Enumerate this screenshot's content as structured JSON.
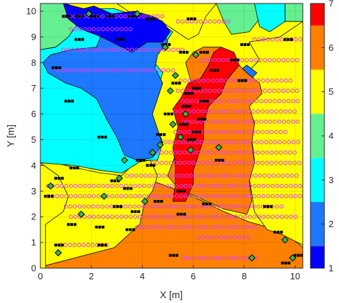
{
  "chart_data": {
    "type": "heatmap",
    "xlabel": "X [m]",
    "ylabel": "Y [m]",
    "xlim": [
      0,
      10.3
    ],
    "ylim": [
      0,
      10.3
    ],
    "x_ticks": [
      0,
      2,
      4,
      6,
      8,
      10
    ],
    "y_ticks": [
      0,
      1,
      2,
      3,
      4,
      5,
      6,
      7,
      8,
      9,
      10
    ],
    "colorbar": {
      "range": [
        1,
        7
      ],
      "ticks": [
        1,
        2,
        3,
        4,
        5,
        6,
        7
      ],
      "levels": [
        {
          "value": 1,
          "color": "#0000ff"
        },
        {
          "value": 2,
          "color": "#1e78ff"
        },
        {
          "value": 3,
          "color": "#00ffff"
        },
        {
          "value": 4,
          "color": "#64f090"
        },
        {
          "value": 5,
          "color": "#ffff00"
        },
        {
          "value": 6,
          "color": "#ff8000"
        },
        {
          "value": 7,
          "color": "#ff0000"
        }
      ]
    },
    "regions": [
      {
        "level": 6,
        "polygon": [
          [
            0.2,
            0
          ],
          [
            10.3,
            0
          ],
          [
            10.3,
            0.8
          ],
          [
            9.6,
            1.4
          ],
          [
            8.2,
            1.8
          ],
          [
            7.2,
            2.2
          ],
          [
            6.4,
            2.6
          ],
          [
            5.2,
            3.1
          ],
          [
            4.4,
            3.4
          ],
          [
            3.9,
            3.7
          ],
          [
            3.4,
            3.1
          ],
          [
            2.8,
            2.5
          ],
          [
            2.1,
            2.0
          ],
          [
            1.6,
            1.2
          ],
          [
            0.9,
            0.6
          ],
          [
            0.3,
            0.3
          ]
        ]
      },
      {
        "level": 5,
        "polygon": [
          [
            0,
            4.1
          ],
          [
            0.7,
            3.6
          ],
          [
            1.1,
            2.8
          ],
          [
            0.9,
            2.2
          ],
          [
            0.2,
            1.7
          ],
          [
            0.2,
            0.1
          ],
          [
            2.9,
            0.8
          ],
          [
            3.9,
            1.7
          ],
          [
            4.1,
            2.6
          ],
          [
            4.4,
            3.0
          ],
          [
            4.6,
            3.6
          ],
          [
            4.3,
            4.2
          ],
          [
            3.7,
            4.1
          ],
          [
            3.2,
            3.6
          ],
          [
            2.4,
            3.7
          ],
          [
            1.4,
            3.9
          ],
          [
            0.6,
            4.1
          ]
        ]
      },
      {
        "level": 5,
        "polygon": [
          [
            1.0,
            10.3
          ],
          [
            0.2,
            10.3
          ],
          [
            0.2,
            8.9
          ],
          [
            0.6,
            8.6
          ],
          [
            1.1,
            8.9
          ],
          [
            1.7,
            9.6
          ],
          [
            1.5,
            10.1
          ]
        ]
      },
      {
        "level": 5,
        "polygon": [
          [
            3.0,
            10.3
          ],
          [
            3.6,
            9.9
          ],
          [
            4.6,
            9.7
          ],
          [
            5.2,
            9.3
          ],
          [
            5.8,
            8.9
          ],
          [
            6.2,
            9.1
          ],
          [
            6.5,
            9.8
          ],
          [
            6.9,
            10.3
          ]
        ]
      },
      {
        "level": 5,
        "polygon": [
          [
            10.3,
            0.9
          ],
          [
            10.3,
            9.6
          ],
          [
            9.4,
            9.0
          ],
          [
            8.2,
            8.8
          ],
          [
            8.6,
            8.1
          ],
          [
            8.1,
            7.6
          ],
          [
            7.4,
            7.1
          ],
          [
            7.0,
            6.6
          ],
          [
            7.5,
            6.4
          ],
          [
            8.1,
            6.2
          ],
          [
            8.4,
            5.7
          ],
          [
            8.3,
            5.0
          ],
          [
            8.4,
            4.2
          ],
          [
            8.2,
            3.5
          ],
          [
            8.3,
            2.9
          ],
          [
            8.4,
            2.2
          ],
          [
            8.9,
            1.5
          ],
          [
            9.5,
            1.3
          ]
        ]
      },
      {
        "level": 4,
        "polygon": [
          [
            0,
            10.3
          ],
          [
            1.0,
            10.3
          ],
          [
            1.5,
            10.1
          ],
          [
            1.7,
            9.6
          ],
          [
            1.2,
            9.0
          ],
          [
            0.6,
            8.6
          ],
          [
            0,
            8.5
          ]
        ]
      },
      {
        "level": 4,
        "polygon": [
          [
            6.9,
            10.3
          ],
          [
            8.4,
            10.3
          ],
          [
            8.6,
            9.7
          ],
          [
            8.2,
            9.2
          ],
          [
            7.5,
            9.1
          ],
          [
            7.2,
            9.6
          ]
        ]
      },
      {
        "level": 4,
        "polygon": [
          [
            9.6,
            10.3
          ],
          [
            10.3,
            10.3
          ],
          [
            10.3,
            9.6
          ],
          [
            9.6,
            9.6
          ]
        ]
      },
      {
        "level": 3,
        "polygon": [
          [
            0,
            8.5
          ],
          [
            0.6,
            8.6
          ],
          [
            1.1,
            9.0
          ],
          [
            1.6,
            9.7
          ],
          [
            2.0,
            10.1
          ],
          [
            2.9,
            10.1
          ],
          [
            3.8,
            9.8
          ],
          [
            4.6,
            9.6
          ],
          [
            5.2,
            9.2
          ],
          [
            4.8,
            8.6
          ],
          [
            4.4,
            8.1
          ],
          [
            4.8,
            7.6
          ],
          [
            4.6,
            7.0
          ],
          [
            4.3,
            6.3
          ],
          [
            4.5,
            5.6
          ],
          [
            4.8,
            4.9
          ],
          [
            4.6,
            4.2
          ],
          [
            4.0,
            4.2
          ],
          [
            3.2,
            3.7
          ],
          [
            2.4,
            3.8
          ],
          [
            1.3,
            4.0
          ],
          [
            0,
            4.1
          ]
        ]
      },
      {
        "level": 3,
        "polygon": [
          [
            8.4,
            10.3
          ],
          [
            9.6,
            10.3
          ],
          [
            9.6,
            9.6
          ],
          [
            9.0,
            9.2
          ],
          [
            8.6,
            9.4
          ]
        ]
      },
      {
        "level": 2,
        "polygon": [
          [
            0.4,
            8.3
          ],
          [
            1.2,
            8.5
          ],
          [
            2.2,
            8.6
          ],
          [
            2.4,
            9.1
          ],
          [
            2.2,
            9.7
          ],
          [
            3.0,
            9.9
          ],
          [
            4.0,
            9.6
          ],
          [
            4.8,
            9.3
          ],
          [
            5.0,
            8.8
          ],
          [
            4.6,
            8.3
          ],
          [
            4.5,
            7.8
          ],
          [
            4.8,
            7.2
          ],
          [
            4.6,
            6.6
          ],
          [
            4.4,
            6.0
          ],
          [
            4.6,
            5.4
          ],
          [
            4.8,
            4.8
          ],
          [
            4.4,
            4.3
          ],
          [
            3.8,
            4.2
          ],
          [
            3.3,
            4.4
          ],
          [
            3.0,
            5.1
          ],
          [
            2.6,
            5.8
          ],
          [
            2.2,
            6.6
          ],
          [
            1.6,
            7.0
          ],
          [
            1.0,
            7.2
          ],
          [
            0.3,
            7.6
          ],
          [
            0.1,
            8.0
          ]
        ]
      },
      {
        "level": 2,
        "polygon": [
          [
            7.7,
            7.1
          ],
          [
            8.2,
            7.3
          ],
          [
            8.5,
            7.6
          ],
          [
            8.1,
            7.9
          ],
          [
            7.6,
            7.5
          ]
        ]
      },
      {
        "level": 1,
        "polygon": [
          [
            0.9,
            10.3
          ],
          [
            1.7,
            10.1
          ],
          [
            2.1,
            10.2
          ],
          [
            2.8,
            9.9
          ],
          [
            3.7,
            10.0
          ],
          [
            4.4,
            9.8
          ],
          [
            4.8,
            9.6
          ],
          [
            5.1,
            9.2
          ],
          [
            4.8,
            8.8
          ],
          [
            4.2,
            8.8
          ],
          [
            3.6,
            8.4
          ],
          [
            3.0,
            8.7
          ],
          [
            2.4,
            9.0
          ],
          [
            1.6,
            9.3
          ],
          [
            1.1,
            9.7
          ]
        ]
      },
      {
        "level": 6,
        "polygon": [
          [
            6.4,
            8.6
          ],
          [
            7.1,
            8.6
          ],
          [
            7.6,
            8.1
          ],
          [
            8.1,
            7.6
          ],
          [
            8.6,
            7.2
          ],
          [
            8.7,
            6.8
          ],
          [
            8.2,
            6.3
          ],
          [
            8.4,
            5.6
          ],
          [
            8.3,
            4.9
          ],
          [
            8.4,
            4.1
          ],
          [
            8.2,
            3.4
          ],
          [
            8.3,
            2.6
          ],
          [
            8.1,
            2.1
          ],
          [
            7.2,
            2.3
          ],
          [
            6.3,
            2.7
          ],
          [
            5.4,
            3.1
          ],
          [
            5.0,
            3.6
          ],
          [
            5.3,
            4.4
          ],
          [
            5.7,
            5.1
          ],
          [
            5.4,
            5.8
          ],
          [
            5.9,
            6.5
          ],
          [
            5.9,
            7.3
          ],
          [
            5.7,
            8.0
          ],
          [
            6.0,
            8.4
          ]
        ]
      },
      {
        "level": 7,
        "polygon": [
          [
            7.1,
            8.6
          ],
          [
            7.6,
            8.4
          ],
          [
            7.8,
            7.9
          ],
          [
            7.3,
            7.3
          ],
          [
            7.1,
            6.8
          ],
          [
            6.6,
            6.3
          ],
          [
            6.4,
            5.6
          ],
          [
            6.4,
            5.0
          ],
          [
            6.2,
            4.4
          ],
          [
            6.0,
            3.8
          ],
          [
            6.0,
            3.3
          ],
          [
            5.7,
            2.6
          ],
          [
            5.2,
            2.6
          ],
          [
            5.3,
            3.3
          ],
          [
            5.3,
            4.0
          ],
          [
            5.2,
            4.7
          ],
          [
            5.4,
            5.5
          ],
          [
            5.2,
            6.2
          ],
          [
            5.5,
            6.6
          ],
          [
            5.8,
            7.2
          ],
          [
            6.3,
            7.4
          ],
          [
            6.6,
            7.9
          ],
          [
            6.8,
            8.4
          ]
        ]
      }
    ],
    "black_markers": [
      [
        0.9,
        9.8
      ],
      [
        1.4,
        9.8
      ],
      [
        2.0,
        9.8
      ],
      [
        2.6,
        9.8
      ],
      [
        3.5,
        9.8
      ],
      [
        4.2,
        9.7
      ],
      [
        5.8,
        9.7
      ],
      [
        1.4,
        8.9
      ],
      [
        3.0,
        8.9
      ],
      [
        4.8,
        8.7
      ],
      [
        7.9,
        8.7
      ],
      [
        9.6,
        8.9
      ],
      [
        5.5,
        8.4
      ],
      [
        6.3,
        8.4
      ],
      [
        7.5,
        8.1
      ],
      [
        0.5,
        7.8
      ],
      [
        6.7,
        7.7
      ],
      [
        7.8,
        7.3
      ],
      [
        5.2,
        7.2
      ],
      [
        6.0,
        7.0
      ],
      [
        5.7,
        6.8
      ],
      [
        6.3,
        6.5
      ],
      [
        1.0,
        6.5
      ],
      [
        5.6,
        6.3
      ],
      [
        4.9,
        6.0
      ],
      [
        6.2,
        5.8
      ],
      [
        5.5,
        5.6
      ],
      [
        6.0,
        5.3
      ],
      [
        4.6,
        5.2
      ],
      [
        5.8,
        5.0
      ],
      [
        2.3,
        5.1
      ],
      [
        6.9,
        4.2
      ],
      [
        3.8,
        4.2
      ],
      [
        4.2,
        4.0
      ],
      [
        1.2,
        3.9
      ],
      [
        0.6,
        3.5
      ],
      [
        2.8,
        3.4
      ],
      [
        3.3,
        3.1
      ],
      [
        5.4,
        3.0
      ],
      [
        0.2,
        2.8
      ],
      [
        4.5,
        2.6
      ],
      [
        6.4,
        2.5
      ],
      [
        2.9,
        2.4
      ],
      [
        3.6,
        2.2
      ],
      [
        5.4,
        2.1
      ],
      [
        8.8,
        2.4
      ],
      [
        1.1,
        1.7
      ],
      [
        2.2,
        1.6
      ],
      [
        3.4,
        1.5
      ],
      [
        9.2,
        1.4
      ],
      [
        0.6,
        0.9
      ],
      [
        2.3,
        0.9
      ],
      [
        5.1,
        0.5
      ],
      [
        9.5,
        0.2
      ],
      [
        10.0,
        0.5
      ]
    ],
    "diamond_markers": [
      [
        1.9,
        9.9
      ],
      [
        3.8,
        9.9
      ],
      [
        4.9,
        8.6
      ],
      [
        6.1,
        8.3
      ],
      [
        5.3,
        7.5
      ],
      [
        5.1,
        6.9
      ],
      [
        5.7,
        6.0
      ],
      [
        5.2,
        5.6
      ],
      [
        5.5,
        5.1
      ],
      [
        4.7,
        4.8
      ],
      [
        4.4,
        4.5
      ],
      [
        3.3,
        4.2
      ],
      [
        5.9,
        4.6
      ],
      [
        7.0,
        4.7
      ],
      [
        3.1,
        3.5
      ],
      [
        0.4,
        3.2
      ],
      [
        2.5,
        2.8
      ],
      [
        4.1,
        2.6
      ],
      [
        1.6,
        2.1
      ],
      [
        9.6,
        1.1
      ],
      [
        8.3,
        0.4
      ],
      [
        9.9,
        0.4
      ],
      [
        0.7,
        0.6
      ]
    ],
    "circle_markers": [
      {
        "y": 9.8,
        "x_from": 1.0,
        "x_to": 4.9
      },
      {
        "y": 9.6,
        "x_from": 5.4,
        "x_to": 7.4
      },
      {
        "y": 9.3,
        "x_from": 1.2,
        "x_to": 3.6
      },
      {
        "y": 8.9,
        "x_from": 8.4,
        "x_to": 10.3
      },
      {
        "y": 8.5,
        "x_from": 0.9,
        "x_to": 5.6
      },
      {
        "y": 8.1,
        "x_from": 6.3,
        "x_to": 10.1
      },
      {
        "y": 7.7,
        "x_from": 0.7,
        "x_to": 5.2
      },
      {
        "y": 7.3,
        "x_from": 5.5,
        "x_to": 9.9
      },
      {
        "y": 6.9,
        "x_from": 5.4,
        "x_to": 10.1
      },
      {
        "y": 6.5,
        "x_from": 5.6,
        "x_to": 10.2
      },
      {
        "y": 6.1,
        "x_from": 5.3,
        "x_to": 10.0
      },
      {
        "y": 5.7,
        "x_from": 5.6,
        "x_to": 10.1
      },
      {
        "y": 5.3,
        "x_from": 5.3,
        "x_to": 9.7
      },
      {
        "y": 4.9,
        "x_from": 4.9,
        "x_to": 10.2
      },
      {
        "y": 4.5,
        "x_from": 4.4,
        "x_to": 10.0
      },
      {
        "y": 4.1,
        "x_from": 4.4,
        "x_to": 10.3
      },
      {
        "y": 3.6,
        "x_from": 3.4,
        "x_to": 10.1
      },
      {
        "y": 3.2,
        "x_from": 0.3,
        "x_to": 10.2
      },
      {
        "y": 2.8,
        "x_from": 0.3,
        "x_to": 10.3
      },
      {
        "y": 2.4,
        "x_from": 1.0,
        "x_to": 9.6
      },
      {
        "y": 2.0,
        "x_from": 1.2,
        "x_to": 10.1
      },
      {
        "y": 1.6,
        "x_from": 3.8,
        "x_to": 8.6
      },
      {
        "y": 1.2,
        "x_from": 6.2,
        "x_to": 8.2
      },
      {
        "y": 0.9,
        "x_from": 0.8,
        "x_to": 2.6
      },
      {
        "y": 0.4,
        "x_from": 5.6,
        "x_to": 8.6
      }
    ],
    "grid": true
  }
}
